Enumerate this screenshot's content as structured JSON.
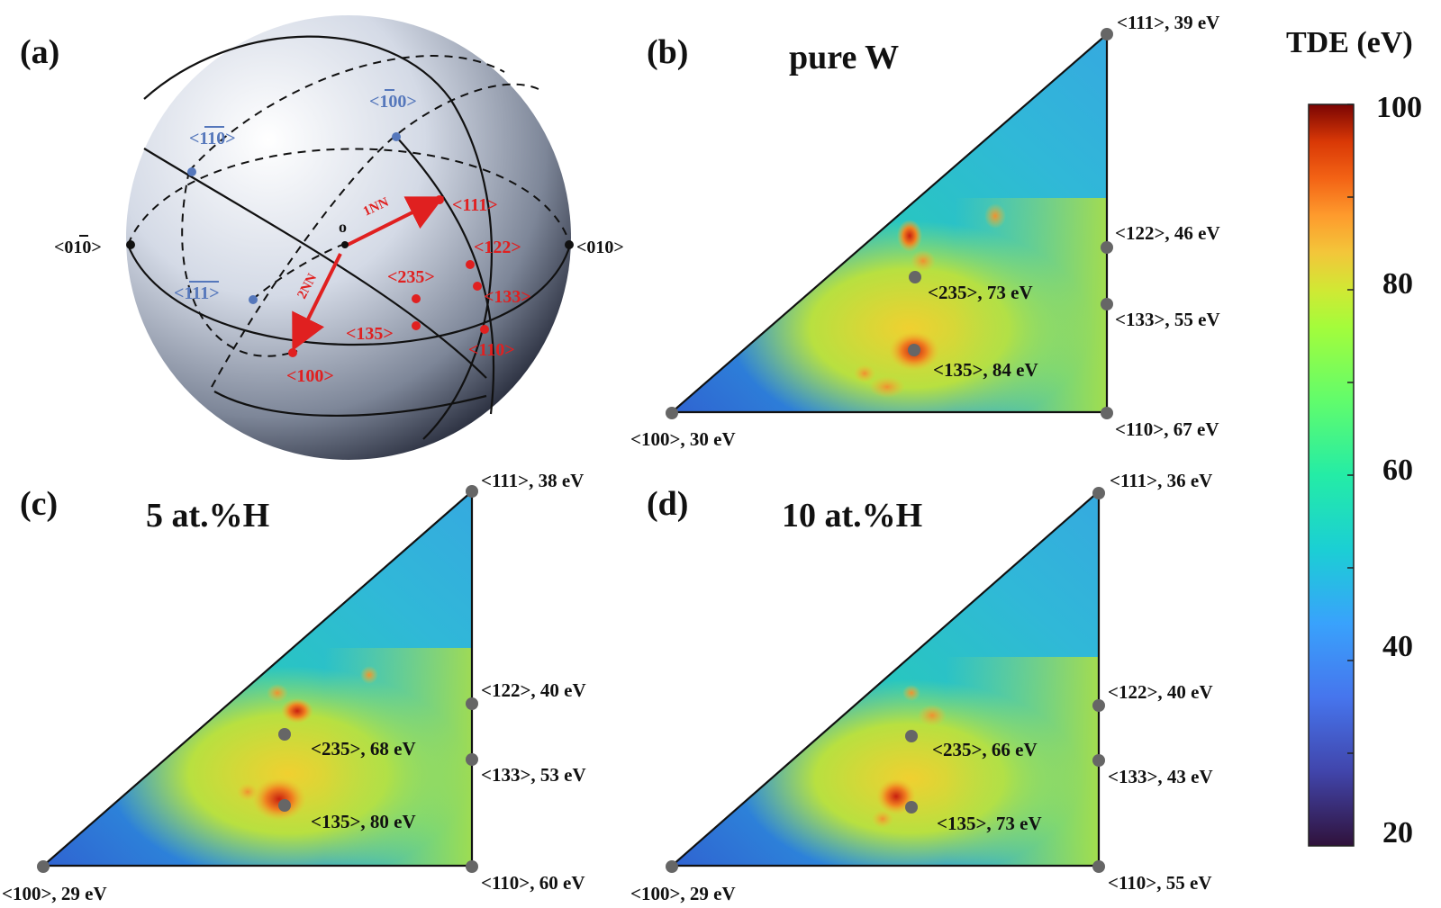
{
  "panel_a": {
    "letter": "(a)",
    "origin": "o",
    "nn1": "1NN",
    "nn2": "2NN",
    "blue_labels": [
      "<̅100>",
      "<̅110>",
      "<̅111>"
    ],
    "blue_display": [
      "<100>",
      "<110>",
      "<111>"
    ],
    "black_labels": [
      "<0̅1 0>",
      "<010>"
    ],
    "black_left": "<010>",
    "black_right": "<010>",
    "red_labels": [
      "<111>",
      "<122>",
      "<235>",
      "<133>",
      "<135>",
      "<110>",
      "<100>"
    ]
  },
  "panel_b": {
    "letter": "(b)",
    "title": "pure W",
    "labels": [
      "<111>, 39 eV",
      "<122>, 46 eV",
      "<133>, 55 eV",
      "<110>, 67 eV",
      "<100>, 30 eV",
      "<235>, 73 eV",
      "<135>, 84 eV"
    ]
  },
  "panel_c": {
    "letter": "(c)",
    "title": "5 at.%H",
    "labels": [
      "<111>, 38 eV",
      "<122>, 40 eV",
      "<133>, 53 eV",
      "<110>, 60 eV",
      "<100>, 29 eV",
      "<235>, 68 eV",
      "<135>, 80 eV"
    ]
  },
  "panel_d": {
    "letter": "(d)",
    "title": "10 at.%H",
    "labels": [
      "<111>, 36 eV",
      "<122>, 40 eV",
      "<133>, 43 eV",
      "<110>, 55 eV",
      "<100>, 29 eV",
      "<235>, 66 eV",
      "<135>, 73 eV"
    ]
  },
  "colorbar": {
    "title": "TDE (eV)",
    "ticks": [
      "100",
      "80",
      "60",
      "40",
      "20"
    ],
    "range": [
      20,
      100
    ]
  },
  "colors": {
    "red": "#e02020",
    "blue": "#5577bb",
    "marker": "#666666"
  }
}
